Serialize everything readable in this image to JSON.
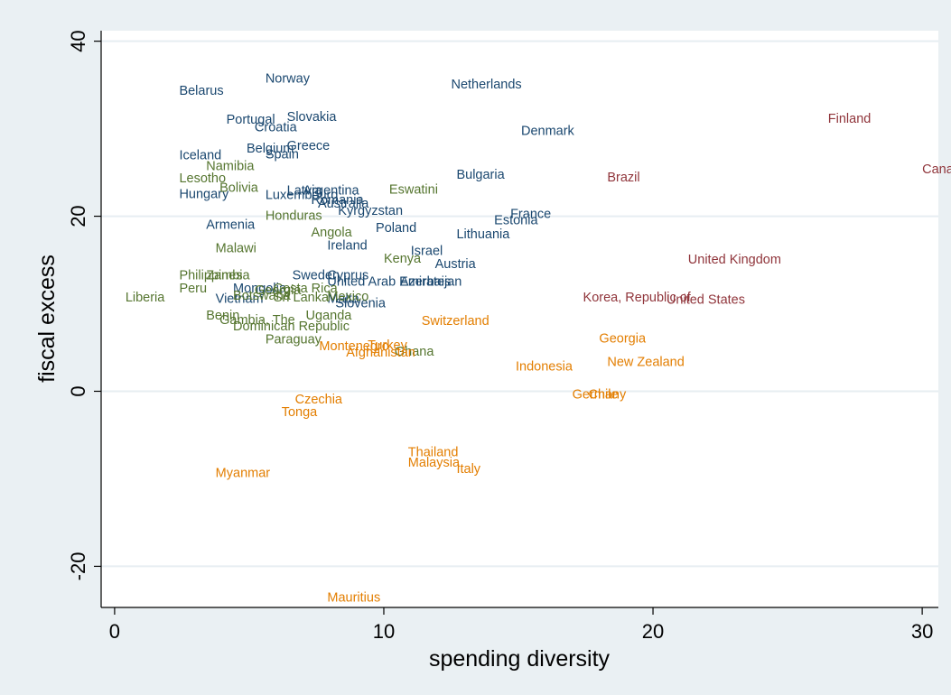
{
  "chart_data": {
    "type": "scatter",
    "xlabel": "spending diversity",
    "ylabel": "fiscal excess",
    "xlim": [
      -0.5,
      30.6
    ],
    "ylim": [
      -24.7,
      41.2
    ],
    "xticks": [
      0,
      10,
      20,
      30
    ],
    "yticks": [
      -20,
      0,
      20,
      40
    ],
    "grid": true,
    "colors": {
      "cluster_blue": "#1a476f",
      "cluster_green": "#55752f",
      "cluster_orange": "#e37e00",
      "cluster_red": "#90353b",
      "background": "#eaf0f3",
      "plot_background": "#ffffff",
      "gridline": "#e7eef2"
    },
    "series": [
      {
        "color": "#1a476f",
        "points": [
          {
            "label": "Norway",
            "x": 5.6,
            "y": 35.8
          },
          {
            "label": "Netherlands",
            "x": 12.5,
            "y": 35.1
          },
          {
            "label": "Belarus",
            "x": 2.4,
            "y": 34.4
          },
          {
            "label": "Slovakia",
            "x": 6.4,
            "y": 31.4
          },
          {
            "label": "Portugal",
            "x": 4.15,
            "y": 31.1
          },
          {
            "label": "Croatia",
            "x": 5.2,
            "y": 30.2
          },
          {
            "label": "Denmark",
            "x": 15.1,
            "y": 29.8
          },
          {
            "label": "Greece",
            "x": 6.4,
            "y": 28.1
          },
          {
            "label": "Belgium",
            "x": 4.9,
            "y": 27.8
          },
          {
            "label": "Spain",
            "x": 5.6,
            "y": 27.1
          },
          {
            "label": "Iceland",
            "x": 2.4,
            "y": 27.0
          },
          {
            "label": "Bulgaria",
            "x": 12.7,
            "y": 24.8
          },
          {
            "label": "Latvia",
            "x": 6.4,
            "y": 23.0
          },
          {
            "label": "Argentina",
            "x": 7.0,
            "y": 23.0
          },
          {
            "label": "Hungary",
            "x": 2.4,
            "y": 22.6
          },
          {
            "label": "Luxembourg",
            "x": 5.6,
            "y": 22.5
          },
          {
            "label": "Romania",
            "x": 7.3,
            "y": 21.9
          },
          {
            "label": "Australia",
            "x": 7.55,
            "y": 21.5
          },
          {
            "label": "Kyrgyzstan",
            "x": 8.3,
            "y": 20.7
          },
          {
            "label": "France",
            "x": 14.7,
            "y": 20.3
          },
          {
            "label": "Estonia",
            "x": 14.1,
            "y": 19.6
          },
          {
            "label": "Armenia",
            "x": 3.4,
            "y": 19.1
          },
          {
            "label": "Poland",
            "x": 9.7,
            "y": 18.7
          },
          {
            "label": "Lithuania",
            "x": 12.7,
            "y": 18.0
          },
          {
            "label": "Ireland",
            "x": 7.9,
            "y": 16.7
          },
          {
            "label": "Israel",
            "x": 11.0,
            "y": 16.1
          },
          {
            "label": "Austria",
            "x": 11.9,
            "y": 14.6
          },
          {
            "label": "Sweden",
            "x": 6.6,
            "y": 13.3
          },
          {
            "label": "Cyprus",
            "x": 7.9,
            "y": 13.3
          },
          {
            "label": "United Arab Emirates",
            "x": 7.9,
            "y": 12.6
          },
          {
            "label": "Azerbaijan",
            "x": 10.6,
            "y": 12.6
          },
          {
            "label": "Mongolia",
            "x": 4.4,
            "y": 11.8
          },
          {
            "label": "Vietnam",
            "x": 3.75,
            "y": 10.6
          },
          {
            "label": "Malta",
            "x": 7.9,
            "y": 10.6
          },
          {
            "label": "Slovenia",
            "x": 8.2,
            "y": 10.1
          }
        ]
      },
      {
        "color": "#55752f",
        "points": [
          {
            "label": "Namibia",
            "x": 3.4,
            "y": 25.8
          },
          {
            "label": "Lesotho",
            "x": 2.4,
            "y": 24.4
          },
          {
            "label": "Bolivia",
            "x": 3.9,
            "y": 23.3
          },
          {
            "label": "Eswatini",
            "x": 10.2,
            "y": 23.1
          },
          {
            "label": "Honduras",
            "x": 5.6,
            "y": 20.1
          },
          {
            "label": "Angola",
            "x": 7.3,
            "y": 18.2
          },
          {
            "label": "Malawi",
            "x": 3.75,
            "y": 16.4
          },
          {
            "label": "Kenya",
            "x": 10.0,
            "y": 15.2
          },
          {
            "label": "Philippines",
            "x": 2.4,
            "y": 13.3
          },
          {
            "label": "Zambia",
            "x": 3.4,
            "y": 13.3
          },
          {
            "label": "Peru",
            "x": 2.4,
            "y": 11.8
          },
          {
            "label": "Costa Rica",
            "x": 5.9,
            "y": 11.8
          },
          {
            "label": "Georgia",
            "x": 5.2,
            "y": 11.6
          },
          {
            "label": "Botswana",
            "x": 4.4,
            "y": 11.0
          },
          {
            "label": "Sri Lanka",
            "x": 5.9,
            "y": 10.8
          },
          {
            "label": "Liberia",
            "x": 0.4,
            "y": 10.8
          },
          {
            "label": "Mexico",
            "x": 7.9,
            "y": 10.9
          },
          {
            "label": "Benin",
            "x": 3.4,
            "y": 8.7
          },
          {
            "label": "Uganda",
            "x": 7.1,
            "y": 8.7
          },
          {
            "label": "Gambia, The",
            "x": 3.9,
            "y": 8.2
          },
          {
            "label": "Dominican Republic",
            "x": 4.4,
            "y": 7.5
          },
          {
            "label": "Paraguay",
            "x": 5.6,
            "y": 6.0
          },
          {
            "label": "Ghana",
            "x": 10.4,
            "y": 4.6
          }
        ]
      },
      {
        "color": "#e37e00",
        "points": [
          {
            "label": "Switzerland",
            "x": 11.4,
            "y": 8.1
          },
          {
            "label": "Georgia",
            "x": 18.0,
            "y": 6.1
          },
          {
            "label": "Montenegro",
            "x": 7.6,
            "y": 5.2
          },
          {
            "label": "Turkey",
            "x": 9.4,
            "y": 5.3
          },
          {
            "label": "Afghanistan",
            "x": 8.6,
            "y": 4.5
          },
          {
            "label": "New Zealand",
            "x": 18.3,
            "y": 3.4
          },
          {
            "label": "Indonesia",
            "x": 14.9,
            "y": 2.9
          },
          {
            "label": "Germany",
            "x": 17.0,
            "y": -0.3
          },
          {
            "label": "Chile",
            "x": 17.6,
            "y": -0.3
          },
          {
            "label": "Czechia",
            "x": 6.7,
            "y": -0.9
          },
          {
            "label": "Tonga",
            "x": 6.2,
            "y": -2.3
          },
          {
            "label": "Thailand",
            "x": 10.9,
            "y": -6.9
          },
          {
            "label": "Malaysia",
            "x": 10.9,
            "y": -8.1
          },
          {
            "label": "Italy",
            "x": 12.7,
            "y": -8.8
          },
          {
            "label": "Myanmar",
            "x": 3.75,
            "y": -9.3
          },
          {
            "label": "Mauritius",
            "x": 7.9,
            "y": -23.5
          }
        ]
      },
      {
        "color": "#90353b",
        "points": [
          {
            "label": "Finland",
            "x": 26.5,
            "y": 31.2
          },
          {
            "label": "Canada",
            "x": 30.0,
            "y": 25.4
          },
          {
            "label": "Brazil",
            "x": 18.3,
            "y": 24.5
          },
          {
            "label": "United Kingdom",
            "x": 21.3,
            "y": 15.1
          },
          {
            "label": "Korea, Republic of",
            "x": 17.4,
            "y": 10.8
          },
          {
            "label": "United States",
            "x": 20.5,
            "y": 10.5
          }
        ]
      }
    ]
  }
}
